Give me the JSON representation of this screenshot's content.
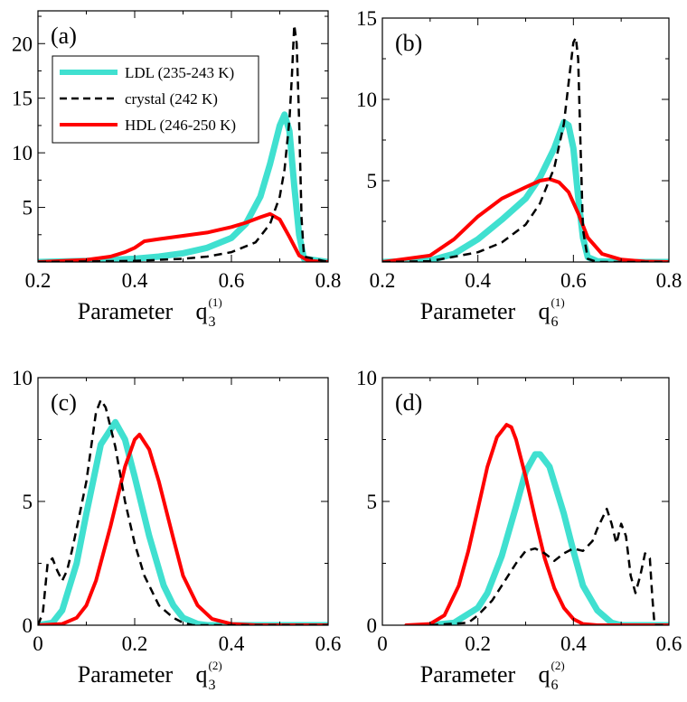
{
  "colors": {
    "LDL": "#40e0d0",
    "crystal": "#000000",
    "HDL": "#ff0000"
  },
  "legend": [
    {
      "series": "LDL",
      "label": "LDL (235-243 K)",
      "style": "solid"
    },
    {
      "series": "crystal",
      "label": "crystal (242 K)",
      "style": "dashed"
    },
    {
      "series": "HDL",
      "label": "HDL (246-250 K)",
      "style": "solid"
    }
  ],
  "chart_data": [
    {
      "type": "line",
      "panel_label": "(a)",
      "xlabel_main": "Parameter",
      "xlabel_q": "q",
      "xlabel_sub": "3",
      "xlabel_sup": "(1)",
      "xlim": [
        0.2,
        0.8
      ],
      "ylim": [
        0,
        23
      ],
      "xticks": [
        0.2,
        0.4,
        0.6,
        0.8
      ],
      "xticklabels": [
        "0.2",
        "0.4",
        "0.6",
        "0.8"
      ],
      "yticks": [
        5,
        10,
        15,
        20
      ],
      "yticklabels": [
        "5",
        "10",
        "15",
        "20"
      ],
      "show_legend": true,
      "series": [
        {
          "name": "LDL",
          "width": 7,
          "x": [
            0.2,
            0.3,
            0.4,
            0.45,
            0.5,
            0.55,
            0.6,
            0.63,
            0.66,
            0.68,
            0.7,
            0.71,
            0.72,
            0.73,
            0.74,
            0.75,
            0.8
          ],
          "y": [
            0,
            0.1,
            0.3,
            0.5,
            0.8,
            1.3,
            2.2,
            3.5,
            6,
            9,
            12.5,
            13.5,
            12,
            7,
            2.5,
            0.3,
            0
          ]
        },
        {
          "name": "crystal",
          "width": 2.5,
          "dashed": true,
          "x": [
            0.2,
            0.4,
            0.5,
            0.55,
            0.6,
            0.65,
            0.68,
            0.7,
            0.71,
            0.72,
            0.725,
            0.73,
            0.735,
            0.74,
            0.745,
            0.75,
            0.8
          ],
          "y": [
            0,
            0.1,
            0.3,
            0.5,
            0.9,
            1.8,
            3.5,
            6,
            8.5,
            13,
            17,
            21.7,
            20,
            13,
            4,
            0.5,
            0
          ]
        },
        {
          "name": "HDL",
          "width": 4,
          "x": [
            0.2,
            0.3,
            0.35,
            0.38,
            0.4,
            0.42,
            0.45,
            0.5,
            0.55,
            0.6,
            0.63,
            0.66,
            0.68,
            0.7,
            0.72,
            0.74,
            0.76,
            0.8
          ],
          "y": [
            0,
            0.2,
            0.5,
            0.9,
            1.3,
            1.9,
            2.1,
            2.4,
            2.7,
            3.2,
            3.6,
            4.1,
            4.4,
            3.9,
            2.3,
            0.6,
            0.1,
            0
          ]
        }
      ]
    },
    {
      "type": "line",
      "panel_label": "(b)",
      "xlabel_main": "Parameter",
      "xlabel_q": "q",
      "xlabel_sub": "6",
      "xlabel_sup": "(1)",
      "xlim": [
        0.2,
        0.8
      ],
      "ylim": [
        0,
        15
      ],
      "xticks": [
        0.2,
        0.4,
        0.6,
        0.8
      ],
      "xticklabels": [
        "0.2",
        "0.4",
        "0.6",
        "0.8"
      ],
      "yticks": [
        5,
        10,
        15
      ],
      "yticklabels": [
        "5",
        "10",
        "15"
      ],
      "show_legend": false,
      "series": [
        {
          "name": "LDL",
          "width": 7,
          "x": [
            0.2,
            0.3,
            0.35,
            0.4,
            0.45,
            0.5,
            0.53,
            0.56,
            0.58,
            0.59,
            0.6,
            0.61,
            0.62,
            0.63,
            0.65,
            0.7,
            0.8
          ],
          "y": [
            0,
            0.1,
            0.5,
            1.4,
            2.6,
            3.9,
            5.2,
            7,
            8.6,
            8.4,
            7,
            4,
            1.5,
            0.3,
            0.05,
            0,
            0
          ]
        },
        {
          "name": "crystal",
          "width": 2.5,
          "dashed": true,
          "x": [
            0.2,
            0.3,
            0.4,
            0.45,
            0.5,
            0.53,
            0.56,
            0.58,
            0.59,
            0.6,
            0.605,
            0.61,
            0.615,
            0.62,
            0.63,
            0.65,
            0.8
          ],
          "y": [
            0,
            0.05,
            0.6,
            1.2,
            2.3,
            3.6,
            5.8,
            8.5,
            11,
            13.5,
            13.8,
            12.5,
            7,
            2,
            0.2,
            0,
            0
          ]
        },
        {
          "name": "HDL",
          "width": 4,
          "x": [
            0.2,
            0.3,
            0.35,
            0.4,
            0.45,
            0.5,
            0.53,
            0.55,
            0.57,
            0.59,
            0.61,
            0.63,
            0.66,
            0.7,
            0.75,
            0.8
          ],
          "y": [
            0,
            0.4,
            1.4,
            2.8,
            3.9,
            4.6,
            5,
            5.1,
            4.9,
            4.3,
            3,
            1.5,
            0.5,
            0.15,
            0.03,
            0
          ]
        }
      ]
    },
    {
      "type": "line",
      "panel_label": "(c)",
      "xlabel_main": "Parameter",
      "xlabel_q": "q",
      "xlabel_sub": "3",
      "xlabel_sup": "(2)",
      "xlim": [
        0,
        0.6
      ],
      "ylim": [
        0,
        10
      ],
      "xticks": [
        0,
        0.2,
        0.4,
        0.6
      ],
      "xticklabels": [
        "0",
        "0.2",
        "0.4",
        "0.6"
      ],
      "yticks": [
        0,
        5,
        10
      ],
      "yticklabels": [
        "0",
        "5",
        "10"
      ],
      "show_legend": false,
      "series": [
        {
          "name": "LDL",
          "width": 7,
          "x": [
            0,
            0.03,
            0.05,
            0.08,
            0.1,
            0.13,
            0.16,
            0.18,
            0.2,
            0.23,
            0.26,
            0.28,
            0.3,
            0.33,
            0.35,
            0.6
          ],
          "y": [
            0,
            0.1,
            0.6,
            2.5,
            4.5,
            7.3,
            8.2,
            7.5,
            6,
            3.6,
            1.6,
            0.8,
            0.3,
            0.05,
            0,
            0
          ]
        },
        {
          "name": "crystal",
          "width": 2.5,
          "dashed": true,
          "x": [
            0,
            0.01,
            0.02,
            0.03,
            0.04,
            0.05,
            0.06,
            0.07,
            0.08,
            0.1,
            0.12,
            0.13,
            0.14,
            0.16,
            0.18,
            0.2,
            0.22,
            0.25,
            0.28,
            0.3,
            0.32,
            0.6
          ],
          "y": [
            0,
            0.5,
            2.5,
            2.7,
            2.2,
            1.8,
            2.2,
            3,
            3.9,
            5.8,
            8.6,
            9.1,
            8.8,
            7.2,
            5,
            3.3,
            2,
            0.8,
            0.3,
            0.1,
            0,
            0
          ]
        },
        {
          "name": "HDL",
          "width": 4,
          "x": [
            0,
            0.05,
            0.08,
            0.1,
            0.12,
            0.15,
            0.18,
            0.2,
            0.21,
            0.23,
            0.25,
            0.28,
            0.3,
            0.33,
            0.36,
            0.4,
            0.45,
            0.6
          ],
          "y": [
            0,
            0.05,
            0.3,
            0.8,
            1.8,
            4,
            6.4,
            7.5,
            7.7,
            7.1,
            5.8,
            3.5,
            2,
            0.8,
            0.25,
            0.05,
            0,
            0
          ]
        }
      ]
    },
    {
      "type": "line",
      "panel_label": "(d)",
      "xlabel_main": "Parameter",
      "xlabel_q": "q",
      "xlabel_sub": "6",
      "xlabel_sup": "(2)",
      "xlim": [
        0,
        0.6
      ],
      "ylim": [
        0,
        10
      ],
      "xticks": [
        0,
        0.2,
        0.4,
        0.6
      ],
      "xticklabels": [
        "0",
        "0.2",
        "0.4",
        "0.6"
      ],
      "yticks": [
        0,
        5,
        10
      ],
      "yticklabels": [
        "0",
        "5",
        "10"
      ],
      "show_legend": false,
      "series": [
        {
          "name": "LDL",
          "width": 7,
          "x": [
            0.1,
            0.15,
            0.2,
            0.22,
            0.25,
            0.28,
            0.3,
            0.32,
            0.33,
            0.35,
            0.38,
            0.4,
            0.42,
            0.45,
            0.48,
            0.5,
            0.6
          ],
          "y": [
            0,
            0.1,
            0.7,
            1.3,
            2.8,
            4.8,
            6.2,
            6.9,
            6.9,
            6.4,
            4.5,
            3,
            1.6,
            0.6,
            0.1,
            0,
            0
          ]
        },
        {
          "name": "crystal",
          "width": 2.5,
          "dashed": true,
          "x": [
            0.1,
            0.18,
            0.2,
            0.23,
            0.25,
            0.28,
            0.3,
            0.32,
            0.34,
            0.36,
            0.38,
            0.4,
            0.42,
            0.44,
            0.45,
            0.47,
            0.48,
            0.49,
            0.5,
            0.51,
            0.52,
            0.53,
            0.54,
            0.55,
            0.56,
            0.565,
            0.57,
            0.6
          ],
          "y": [
            0,
            0.1,
            0.4,
            1,
            1.6,
            2.5,
            3,
            3.1,
            2.9,
            2.6,
            2.9,
            3.1,
            3,
            3.4,
            3.9,
            4.7,
            4.1,
            3.3,
            4.1,
            3.6,
            2,
            1.3,
            2,
            2.9,
            2.7,
            1.2,
            0,
            0
          ]
        },
        {
          "name": "HDL",
          "width": 4,
          "x": [
            0.05,
            0.1,
            0.13,
            0.16,
            0.18,
            0.2,
            0.22,
            0.24,
            0.26,
            0.27,
            0.28,
            0.3,
            0.32,
            0.34,
            0.36,
            0.38,
            0.4,
            0.42,
            0.45,
            0.6
          ],
          "y": [
            0,
            0.05,
            0.4,
            1.6,
            3,
            4.7,
            6.4,
            7.6,
            8.1,
            8,
            7.5,
            6,
            4.3,
            2.7,
            1.5,
            0.7,
            0.25,
            0.05,
            0,
            0
          ]
        }
      ]
    }
  ]
}
